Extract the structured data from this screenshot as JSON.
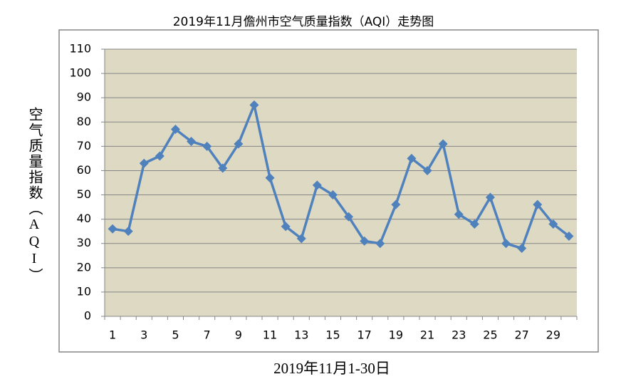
{
  "chart_data": {
    "type": "line",
    "title": "2019年11月儋州市空气质量指数（AQI）走势图",
    "y_label": "空气质量指数（AQI）",
    "x_label": "2019年11月1-30日",
    "categories": [
      "1",
      null,
      "3",
      null,
      "5",
      null,
      "7",
      null,
      "9",
      null,
      "11",
      null,
      "13",
      null,
      "15",
      null,
      "17",
      null,
      "19",
      null,
      "21",
      null,
      "23",
      null,
      "25",
      null,
      "27",
      null,
      "29",
      null
    ],
    "series": [
      {
        "name": "AQI",
        "color": "#4f81bd",
        "values": [
          36,
          35,
          63,
          66,
          77,
          72,
          70,
          61,
          71,
          87,
          57,
          37,
          32,
          54,
          50,
          41,
          31,
          30,
          46,
          65,
          60,
          71,
          42,
          38,
          49,
          30,
          28,
          46,
          38,
          33
        ]
      }
    ],
    "ylim": [
      0,
      110
    ],
    "yticks": [
      0,
      10,
      20,
      30,
      40,
      50,
      60,
      70,
      80,
      90,
      100,
      110
    ],
    "grid": true
  }
}
